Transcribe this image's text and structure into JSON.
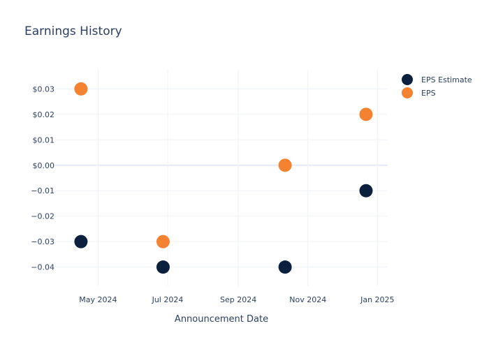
{
  "chart_data": {
    "type": "scatter",
    "title": "Earnings History",
    "xlabel": "Announcement Date",
    "ylabel": "",
    "x_ticks": [
      {
        "date": "2024-05-01",
        "label": "May 2024"
      },
      {
        "date": "2024-07-01",
        "label": "Jul 2024"
      },
      {
        "date": "2024-09-01",
        "label": "Sep 2024"
      },
      {
        "date": "2024-11-01",
        "label": "Nov 2024"
      },
      {
        "date": "2025-01-01",
        "label": "Jan 2025"
      }
    ],
    "xlim": [
      "2024-03-25",
      "2025-01-10"
    ],
    "y_ticks": [
      {
        "value": 0.03,
        "label": "$0.03"
      },
      {
        "value": 0.02,
        "label": "$0.02"
      },
      {
        "value": 0.01,
        "label": "$0.01"
      },
      {
        "value": 0.0,
        "label": "$0.00"
      },
      {
        "value": -0.01,
        "label": "−0.01"
      },
      {
        "value": -0.02,
        "label": "−0.02"
      },
      {
        "value": -0.03,
        "label": "−0.03"
      },
      {
        "value": -0.04,
        "label": "−0.04"
      }
    ],
    "ylim": [
      -0.0475,
      0.0375
    ],
    "grid": true,
    "legend_position": "top-right",
    "series": [
      {
        "name": "EPS Estimate",
        "color": "#0b1f3f",
        "points": [
          {
            "x": "2024-04-16",
            "y": -0.03
          },
          {
            "x": "2024-06-27",
            "y": -0.04
          },
          {
            "x": "2024-10-12",
            "y": -0.04
          },
          {
            "x": "2024-12-22",
            "y": -0.01
          }
        ]
      },
      {
        "name": "EPS",
        "color": "#f58231",
        "points": [
          {
            "x": "2024-04-16",
            "y": 0.03
          },
          {
            "x": "2024-06-27",
            "y": -0.03
          },
          {
            "x": "2024-10-12",
            "y": 0.0
          },
          {
            "x": "2024-12-22",
            "y": 0.02
          }
        ]
      }
    ]
  }
}
